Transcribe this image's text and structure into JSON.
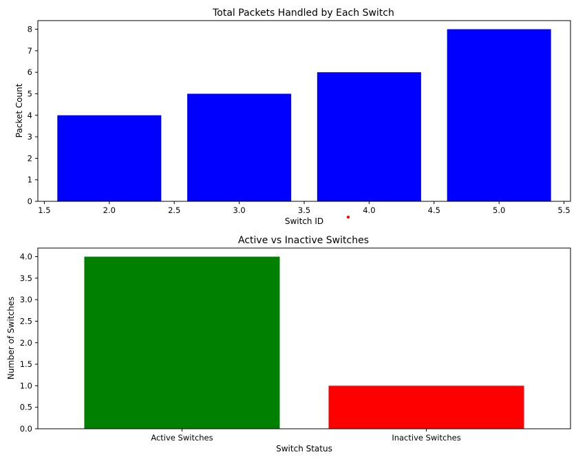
{
  "chart_data": [
    {
      "type": "bar",
      "title": "Total Packets Handled by Each Switch",
      "xlabel": "Switch ID",
      "ylabel": "Packet Count",
      "x": [
        2,
        3,
        4,
        5
      ],
      "values": [
        4,
        5,
        6,
        8
      ],
      "bar_width": 0.8,
      "color": "#0000ff",
      "xlim": [
        1.45,
        5.55
      ],
      "ylim": [
        0,
        8.4
      ],
      "xticks": [
        "1.5",
        "2.0",
        "2.5",
        "3.0",
        "3.5",
        "4.0",
        "4.5",
        "5.0",
        "5.5"
      ],
      "yticks": [
        "0",
        "1",
        "2",
        "3",
        "4",
        "5",
        "6",
        "7",
        "8"
      ],
      "grid": false,
      "legend": "none"
    },
    {
      "type": "bar",
      "title": "Active vs Inactive Switches",
      "xlabel": "Switch Status",
      "ylabel": "Number of Switches",
      "categories": [
        "Active Switches",
        "Inactive Switches"
      ],
      "values": [
        4,
        1
      ],
      "colors": [
        "#008000",
        "#ff0000"
      ],
      "ylim": [
        0,
        4.2
      ],
      "yticks": [
        "0.0",
        "0.5",
        "1.0",
        "1.5",
        "2.0",
        "2.5",
        "3.0",
        "3.5",
        "4.0"
      ],
      "grid": false,
      "legend": "none"
    }
  ]
}
